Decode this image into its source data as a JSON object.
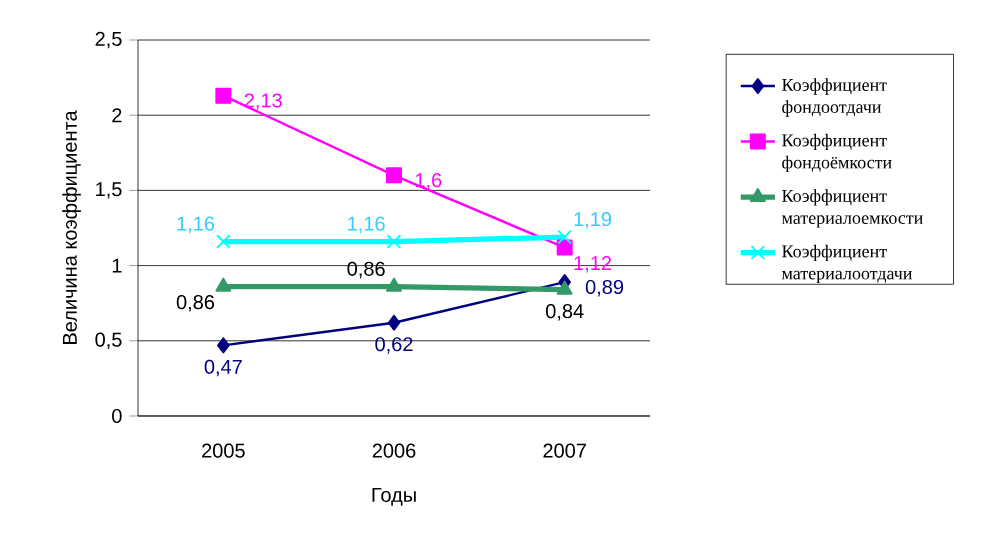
{
  "chart_data": {
    "type": "line",
    "xlabel": "Годы",
    "ylabel": "Величина коэффициента",
    "categories": [
      "2005",
      "2006",
      "2007"
    ],
    "ylim": [
      0,
      2.5
    ],
    "yticks": [
      {
        "value": 0,
        "label": "0"
      },
      {
        "value": 0.5,
        "label": "0,5"
      },
      {
        "value": 1,
        "label": "1"
      },
      {
        "value": 1.5,
        "label": "1,5"
      },
      {
        "value": 2,
        "label": "2"
      },
      {
        "value": 2.5,
        "label": "2,5"
      }
    ],
    "grid": "y",
    "legend": "right",
    "series": [
      {
        "name": "Коэффициент фондоотдачи",
        "color": "#000080",
        "marker": "diamond",
        "values": [
          0.47,
          0.62,
          0.89
        ],
        "value_labels": [
          "0,47",
          "0,62",
          "0,89"
        ]
      },
      {
        "name": "Коэффициент фондоёмкости",
        "color": "#ff00ff",
        "marker": "square",
        "values": [
          2.13,
          1.6,
          1.12
        ],
        "value_labels": [
          "2,13",
          "1,6",
          "1,12"
        ]
      },
      {
        "name": "Коэффициент материалоемкости",
        "color": "#339966",
        "marker": "triangle",
        "values": [
          0.86,
          0.86,
          0.84
        ],
        "value_labels": [
          "0,86",
          "0,86",
          "0,84"
        ]
      },
      {
        "name": "Коэффициент материалоотдачи",
        "color": "#00ffff",
        "marker": "cross",
        "values": [
          1.16,
          1.16,
          1.19
        ],
        "value_labels": [
          "1,16",
          "1,16",
          "1,19"
        ]
      }
    ]
  }
}
